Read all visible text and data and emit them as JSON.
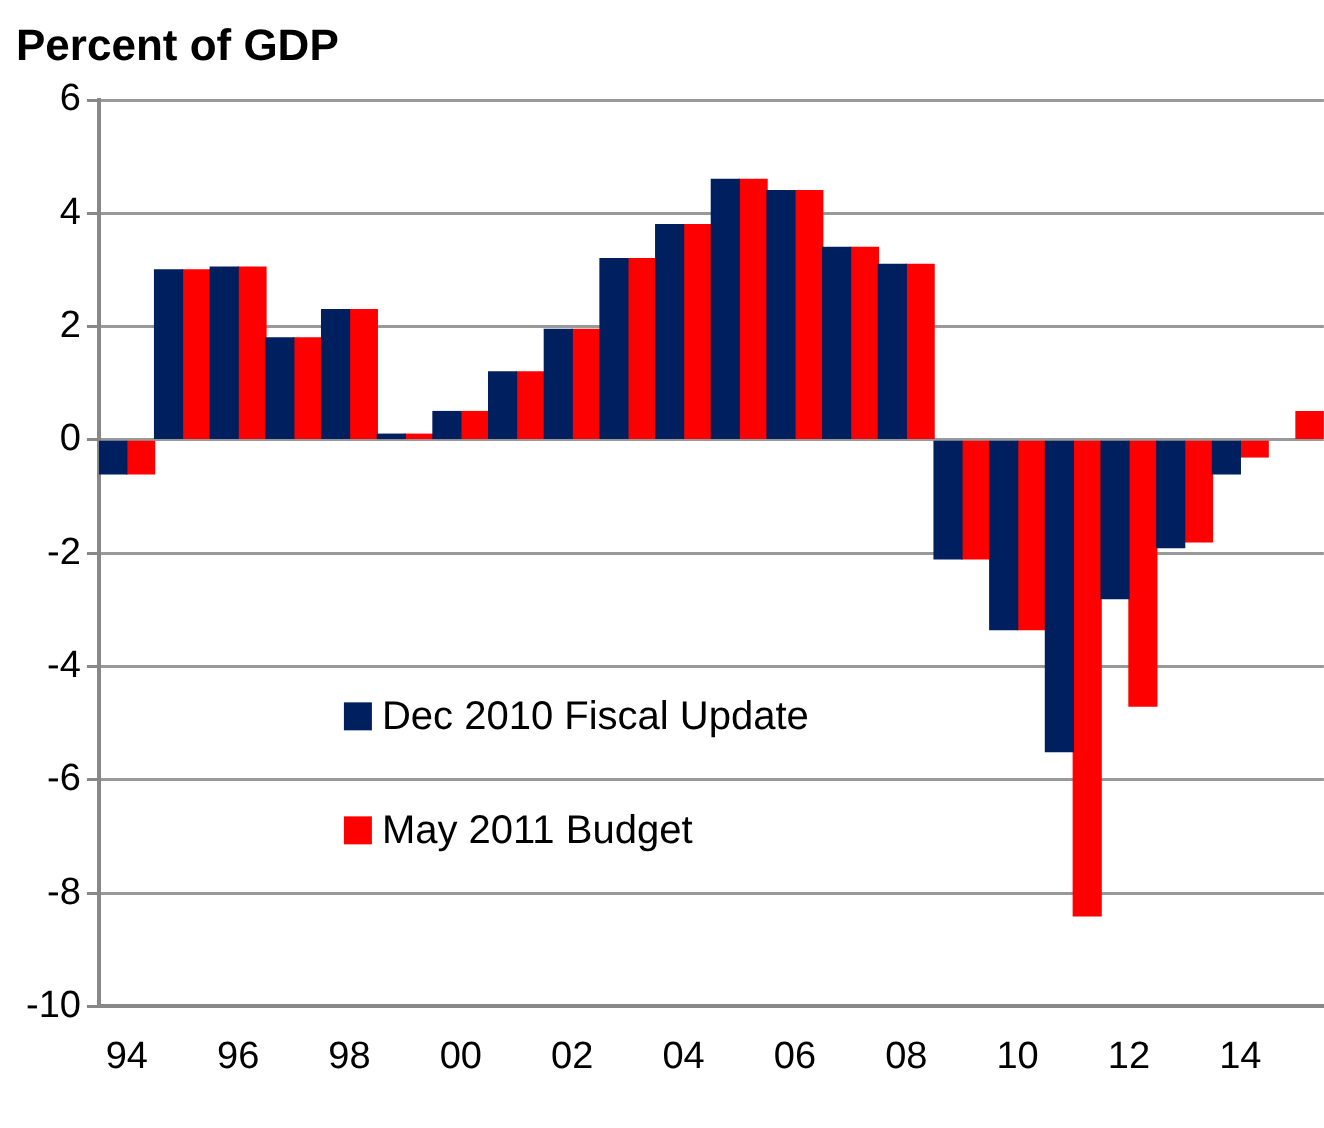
{
  "chart_data": {
    "type": "bar",
    "title": "Percent of GDP",
    "categories": [
      "94",
      null,
      "96",
      null,
      "98",
      null,
      "00",
      null,
      "02",
      null,
      "04",
      null,
      "06",
      null,
      "08",
      null,
      "10",
      null,
      "12",
      null,
      "14",
      null
    ],
    "series": [
      {
        "name": "Dec 2010 Fiscal Update",
        "color": "#001f5f",
        "values": [
          -0.6,
          3.0,
          3.05,
          1.8,
          2.3,
          0.1,
          0.5,
          1.2,
          1.95,
          3.2,
          3.8,
          4.6,
          4.4,
          3.4,
          3.1,
          -2.1,
          -3.35,
          -5.5,
          -2.8,
          -1.9,
          -0.6,
          null
        ]
      },
      {
        "name": "May 2011 Budget",
        "color": "#ff0000",
        "values": [
          -0.6,
          3.0,
          3.05,
          1.8,
          2.3,
          0.1,
          0.5,
          1.2,
          1.95,
          3.2,
          3.8,
          4.6,
          4.4,
          3.4,
          3.1,
          -2.1,
          -3.35,
          -8.4,
          -4.7,
          -1.8,
          -0.3,
          0.5
        ]
      }
    ],
    "ylim": [
      -10,
      6
    ],
    "yticks": [
      -10,
      -8,
      -6,
      -4,
      -2,
      0,
      2,
      4,
      6
    ],
    "grid": "y",
    "legend": "bottom left"
  }
}
